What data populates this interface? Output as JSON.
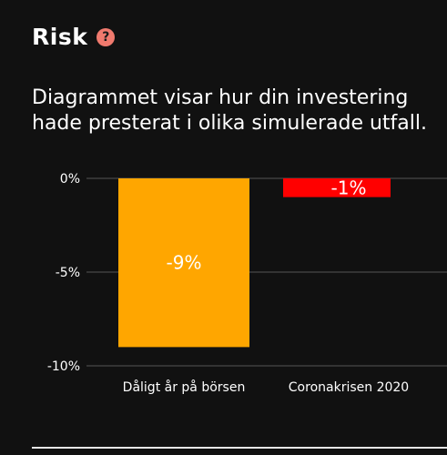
{
  "header": {
    "title": "Risk",
    "help_icon": "question-circle-icon",
    "help_glyph": "?"
  },
  "description": "Diagrammet visar hur din investering hade presterat i olika simulerade utfall.",
  "chart_data": {
    "type": "bar",
    "categories": [
      "Dåligt år på börsen",
      "Coronakrisen 2020"
    ],
    "values": [
      -9,
      -1
    ],
    "value_labels": [
      "-9%",
      "-1%"
    ],
    "colors": [
      "#ffa600",
      "#ff0000"
    ],
    "y_ticks": [
      0,
      -5,
      -10
    ],
    "y_tick_labels": [
      "0%",
      "-5%",
      "-10%"
    ],
    "ylim": [
      -10,
      0
    ],
    "grid": true
  }
}
